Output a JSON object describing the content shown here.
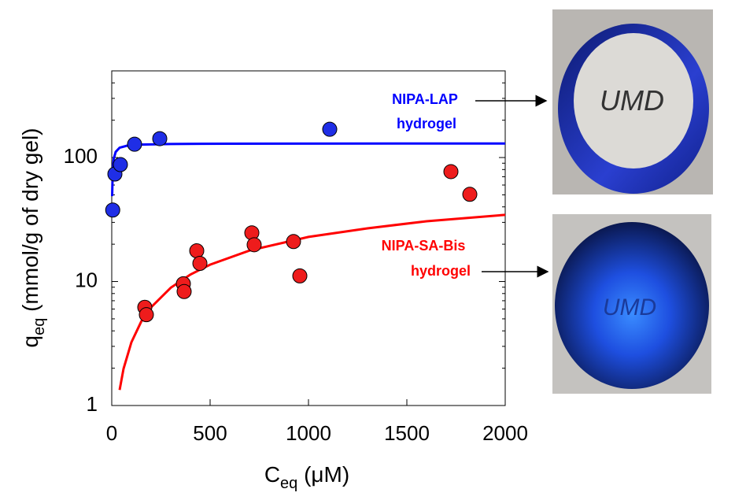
{
  "chart_data": {
    "type": "scatter",
    "x_label": {
      "main": "C",
      "sub": "eq",
      "rest": " (μM)"
    },
    "y_label": {
      "main": "q",
      "sub": "eq",
      "rest": " (mmol/g of dry gel)"
    },
    "xlim": [
      0,
      2000
    ],
    "xticks": [
      0,
      500,
      1000,
      1500,
      2000
    ],
    "ylim": [
      1,
      500
    ],
    "yticks": [
      1,
      10,
      100
    ],
    "ylog": true,
    "series": [
      {
        "type": "scatter",
        "color": "#1f2ee6",
        "x": [
          5,
          16,
          44,
          116,
          244,
          1108
        ],
        "values": [
          37.7,
          73.6,
          87.7,
          128,
          142,
          169
        ]
      },
      {
        "type": "scatter",
        "color": "#ee1c1c",
        "x": [
          168,
          176,
          364,
          368,
          432,
          448,
          712,
          724,
          924,
          956,
          1724,
          1820
        ],
        "values": [
          6.2,
          5.4,
          9.6,
          8.3,
          17.7,
          14,
          24.7,
          19.8,
          21,
          11.1,
          77,
          50.5
        ]
      },
      {
        "type": "line",
        "color": "#0000ff",
        "x": [
          2,
          5,
          10,
          20,
          40,
          80,
          150,
          300,
          600,
          1000,
          1500,
          2000
        ],
        "values": [
          48.8,
          78,
          97.5,
          111,
          120,
          124.8,
          127.2,
          128.6,
          129.3,
          129.6,
          129.7,
          129.8
        ]
      },
      {
        "type": "line",
        "color": "#ff0000",
        "x": [
          40,
          60,
          100,
          150,
          200,
          300,
          400,
          500,
          700,
          1000,
          1300,
          1600,
          2000
        ],
        "values": [
          1.335,
          1.98,
          3.24,
          4.76,
          6.2,
          8.91,
          11.39,
          13.68,
          17.77,
          22.89,
          26.86,
          30.62,
          34.5
        ]
      }
    ],
    "annotations": [
      {
        "text": [
          "NIPA-LAP",
          "hydrogel"
        ],
        "color": "#0000ff"
      },
      {
        "text": [
          "NIPA-SA-Bis",
          "hydrogel"
        ],
        "color": "#ff0000"
      }
    ]
  },
  "photos": [
    {
      "label": "UMD"
    },
    {
      "label": "UMD"
    }
  ]
}
